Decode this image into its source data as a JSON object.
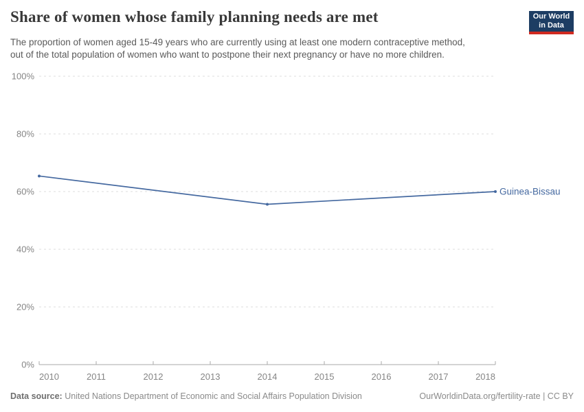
{
  "header": {
    "title": "Share of women whose family planning needs are met",
    "subtitle_lines": [
      "The proportion of women aged 15-49 years who are currently using at least one modern contraceptive method,",
      "out of the total population of women who want to postpone their next pregnancy or have no more children."
    ],
    "logo": {
      "line1": "Our World",
      "line2": "in Data"
    }
  },
  "chart_data": {
    "type": "line",
    "title": "Share of women whose family planning needs are met",
    "xlabel": "",
    "ylabel": "",
    "xlim": [
      2010,
      2018
    ],
    "ylim": [
      0,
      100
    ],
    "xticks": [
      2010,
      2011,
      2012,
      2013,
      2014,
      2015,
      2016,
      2017,
      2018
    ],
    "yticks": [
      0,
      20,
      40,
      60,
      80,
      100
    ],
    "y_tick_suffix": "%",
    "grid": "horizontal-dashed",
    "legend_position": "end-of-line-label",
    "series": [
      {
        "name": "Guinea-Bissau",
        "color": "#4569a0",
        "points": [
          {
            "x": 2010,
            "y": 65.4
          },
          {
            "x": 2014,
            "y": 55.6
          },
          {
            "x": 2018,
            "y": 60.0
          }
        ]
      }
    ]
  },
  "footer": {
    "source_label": "Data source:",
    "source_text": "United Nations Department of Economic and Social Affairs Population Division",
    "link_text": "OurWorldinData.org/fertility-rate | CC BY"
  },
  "colors": {
    "line": "#4569a0",
    "logo_bg": "#1d3d63",
    "logo_stripe": "#d02a20",
    "grid": "#dddddd",
    "axis": "#a8a8a8",
    "tick_label": "#858585",
    "title_text": "#383838",
    "subtitle_text": "#5a5a5a",
    "footer_text": "#8a8a8a"
  }
}
